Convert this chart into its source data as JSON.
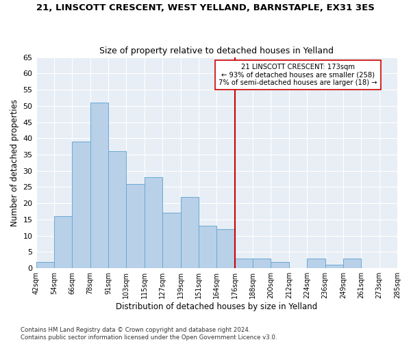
{
  "title1": "21, LINSCOTT CRESCENT, WEST YELLAND, BARNSTAPLE, EX31 3ES",
  "title2": "Size of property relative to detached houses in Yelland",
  "xlabel": "Distribution of detached houses by size in Yelland",
  "ylabel": "Number of detached properties",
  "bar_values": [
    2,
    16,
    39,
    51,
    36,
    26,
    28,
    17,
    22,
    13,
    12,
    3,
    3,
    2,
    0,
    3,
    1,
    3
  ],
  "bin_labels": [
    "42sqm",
    "54sqm",
    "66sqm",
    "78sqm",
    "91sqm",
    "103sqm",
    "115sqm",
    "127sqm",
    "139sqm",
    "151sqm",
    "164sqm",
    "176sqm",
    "188sqm",
    "200sqm",
    "212sqm",
    "224sqm",
    "236sqm",
    "249sqm",
    "261sqm",
    "273sqm",
    "285sqm"
  ],
  "bar_color": "#b8d0e8",
  "bar_edge_color": "#6aaad4",
  "bg_color": "#e8eef5",
  "grid_color": "#ffffff",
  "vline_index": 11,
  "vline_color": "#cc0000",
  "annotation_text": "21 LINSCOTT CRESCENT: 173sqm\n← 93% of detached houses are smaller (258)\n7% of semi-detached houses are larger (18) →",
  "annotation_box_color": "#cc0000",
  "ylim": [
    0,
    65
  ],
  "yticks": [
    0,
    5,
    10,
    15,
    20,
    25,
    30,
    35,
    40,
    45,
    50,
    55,
    60,
    65
  ],
  "title1_fontsize": 9.5,
  "title2_fontsize": 9,
  "footer1": "Contains HM Land Registry data © Crown copyright and database right 2024.",
  "footer2": "Contains public sector information licensed under the Open Government Licence v3.0."
}
